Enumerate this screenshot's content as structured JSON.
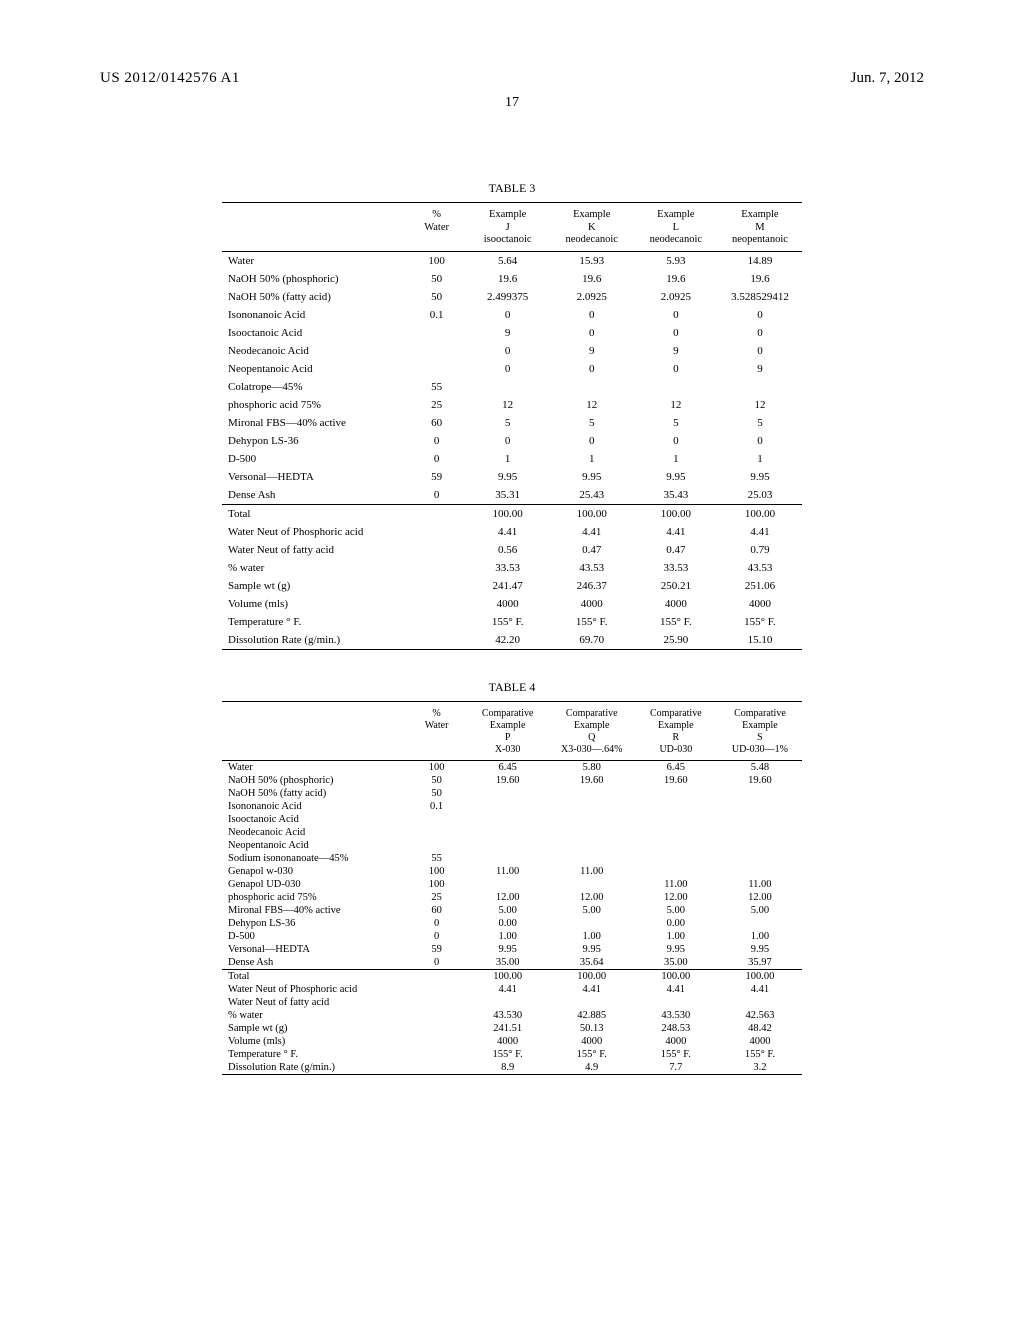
{
  "header": {
    "pub_no": "US 2012/0142576 A1",
    "date": "Jun. 7, 2012",
    "page_no": "17"
  },
  "table3": {
    "title": "TABLE 3",
    "columns": [
      "",
      "% Water",
      "Example J isooctanoic",
      "Example K neodecanoic",
      "Example L neodecanoic",
      "Example M neopentanoic"
    ],
    "rows": [
      [
        "Water",
        "100",
        "5.64",
        "15.93",
        "5.93",
        "14.89"
      ],
      [
        "NaOH 50% (phosphoric)",
        "50",
        "19.6",
        "19.6",
        "19.6",
        "19.6"
      ],
      [
        "NaOH 50% (fatty acid)",
        "50",
        "2.499375",
        "2.0925",
        "2.0925",
        "3.528529412"
      ],
      [
        "Isononanoic Acid",
        "0.1",
        "0",
        "0",
        "0",
        "0"
      ],
      [
        "Isooctanoic Acid",
        "",
        "9",
        "0",
        "0",
        "0"
      ],
      [
        "Neodecanoic Acid",
        "",
        "0",
        "9",
        "9",
        "0"
      ],
      [
        "Neopentanoic Acid",
        "",
        "0",
        "0",
        "0",
        "9"
      ],
      [
        "Colatrope—45%",
        "55",
        "",
        "",
        "",
        ""
      ],
      [
        "phosphoric acid 75%",
        "25",
        "12",
        "12",
        "12",
        "12"
      ],
      [
        "Mironal FBS—40% active",
        "60",
        "5",
        "5",
        "5",
        "5"
      ],
      [
        "Dehypon LS-36",
        "0",
        "0",
        "0",
        "0",
        "0"
      ],
      [
        "D-500",
        "0",
        "1",
        "1",
        "1",
        "1"
      ],
      [
        "Versonal—HEDTA",
        "59",
        "9.95",
        "9.95",
        "9.95",
        "9.95"
      ],
      [
        "Dense Ash",
        "0",
        "35.31",
        "25.43",
        "35.43",
        "25.03"
      ]
    ],
    "rows2": [
      [
        "Total",
        "",
        "100.00",
        "100.00",
        "100.00",
        "100.00"
      ],
      [
        "Water Neut of Phosphoric acid",
        "",
        "4.41",
        "4.41",
        "4.41",
        "4.41"
      ],
      [
        "Water Neut of fatty acid",
        "",
        "0.56",
        "0.47",
        "0.47",
        "0.79"
      ],
      [
        "% water",
        "",
        "33.53",
        "43.53",
        "33.53",
        "43.53"
      ],
      [
        "Sample wt (g)",
        "",
        "241.47",
        "246.37",
        "250.21",
        "251.06"
      ],
      [
        "Volume (mls)",
        "",
        "4000",
        "4000",
        "4000",
        "4000"
      ],
      [
        "Temperature ° F.",
        "",
        "155° F.",
        "155° F.",
        "155° F.",
        "155° F."
      ],
      [
        "Dissolution Rate (g/min.)",
        "",
        "42.20",
        "69.70",
        "25.90",
        "15.10"
      ]
    ]
  },
  "table4": {
    "title": "TABLE 4",
    "columns": [
      "",
      "% Water",
      "Comparative Example P X-030",
      "Comparative Example Q X3-030—.64%",
      "Comparative Example R UD-030",
      "Comparative Example S UD-030—1%"
    ],
    "rows": [
      [
        "Water",
        "100",
        "6.45",
        "5.80",
        "6.45",
        "5.48"
      ],
      [
        "NaOH 50% (phosphoric)",
        "50",
        "19.60",
        "19.60",
        "19.60",
        "19.60"
      ],
      [
        "NaOH 50% (fatty acid)",
        "50",
        "",
        "",
        "",
        ""
      ],
      [
        "Isononanoic Acid",
        "0.1",
        "",
        "",
        "",
        ""
      ],
      [
        "Isooctanoic Acid",
        "",
        "",
        "",
        "",
        ""
      ],
      [
        "Neodecanoic Acid",
        "",
        "",
        "",
        "",
        ""
      ],
      [
        "Neopentanoic Acid",
        "",
        "",
        "",
        "",
        ""
      ],
      [
        "Sodium isononanoate—45%",
        "55",
        "",
        "",
        "",
        ""
      ],
      [
        "Genapol w-030",
        "100",
        "11.00",
        "11.00",
        "",
        ""
      ],
      [
        "Genapol UD-030",
        "100",
        "",
        "",
        "11.00",
        "11.00"
      ],
      [
        "phosphoric acid 75%",
        "25",
        "12.00",
        "12.00",
        "12.00",
        "12.00"
      ],
      [
        "Mironal FBS—40% active",
        "60",
        "5.00",
        "5.00",
        "5.00",
        "5.00"
      ],
      [
        "Dehypon LS-36",
        "0",
        "0.00",
        "",
        "0.00",
        ""
      ],
      [
        "D-500",
        "0",
        "1.00",
        "1.00",
        "1.00",
        "1.00"
      ],
      [
        "Versonal—HEDTA",
        "59",
        "9.95",
        "9.95",
        "9.95",
        "9.95"
      ],
      [
        "Dense Ash",
        "0",
        "35.00",
        "35.64",
        "35.00",
        "35.97"
      ]
    ],
    "rows2": [
      [
        "Total",
        "",
        "100.00",
        "100.00",
        "100.00",
        "100.00"
      ],
      [
        "Water Neut of Phosphoric acid",
        "",
        "4.41",
        "4.41",
        "4.41",
        "4.41"
      ],
      [
        "Water Neut of fatty acid",
        "",
        "",
        "",
        "",
        ""
      ],
      [
        "% water",
        "",
        "43.530",
        "42.885",
        "43.530",
        "42.563"
      ],
      [
        "Sample wt (g)",
        "",
        "241.51",
        "50.13",
        "248.53",
        "48.42"
      ],
      [
        "Volume (mls)",
        "",
        "4000",
        "4000",
        "4000",
        "4000"
      ],
      [
        "Temperature ° F.",
        "",
        "155° F.",
        "155° F.",
        "155° F.",
        "155° F."
      ],
      [
        "Dissolution Rate (g/min.)",
        "",
        "8.9",
        "4.9",
        "7.7",
        "3.2"
      ]
    ]
  }
}
